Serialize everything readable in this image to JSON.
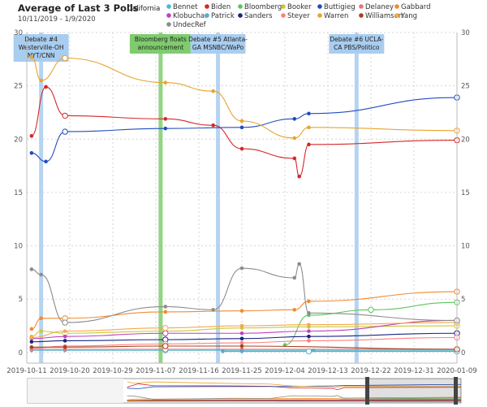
{
  "title": "Average of Last 3 Polls",
  "date_range": "10/11/2019 - 1/9/2020",
  "region": "California",
  "chart_data": {
    "type": "line",
    "x_ticks": [
      "2019-10-11",
      "2019-10-20",
      "2019-10-29",
      "2019-11-07",
      "2019-11-16",
      "2019-11-25",
      "2019-12-04",
      "2019-12-13",
      "2019-12-22",
      "2019-12-31",
      "2020-01-09"
    ],
    "y_ticks": [
      "0",
      "5",
      "10",
      "15",
      "20",
      "25",
      "30"
    ],
    "xlim": [
      "2019-10-11",
      "2020-01-09"
    ],
    "ylim": [
      -1,
      30
    ],
    "grid": true,
    "legend_position": "top",
    "series": [
      {
        "name": "Bennet",
        "color": "#46bcd2",
        "points": [
          [
            "2019-10-12",
            0.2
          ],
          [
            "2019-10-19",
            0.2
          ],
          [
            "2019-11-09",
            0.2
          ],
          [
            "2019-11-25",
            0.2
          ],
          [
            "2019-12-10",
            0.2
          ],
          [
            "2020-01-09",
            0.2
          ]
        ]
      },
      {
        "name": "Biden",
        "color": "#d62728",
        "points": [
          [
            "2019-10-12",
            20.3
          ],
          [
            "2019-10-15",
            24.9
          ],
          [
            "2019-10-19",
            22.2
          ],
          [
            "2019-11-09",
            21.9
          ],
          [
            "2019-11-19",
            21.3
          ],
          [
            "2019-11-25",
            19.1
          ],
          [
            "2019-12-06",
            18.2
          ],
          [
            "2019-12-07",
            16.5
          ],
          [
            "2019-12-09",
            19.5
          ],
          [
            "2020-01-09",
            19.9
          ]
        ]
      },
      {
        "name": "Bloomberg",
        "color": "#5cc45c",
        "points": [
          [
            "2019-12-04",
            0.7
          ],
          [
            "2019-12-09",
            3.5
          ],
          [
            "2019-12-22",
            4.0
          ],
          [
            "2020-01-09",
            4.7
          ]
        ]
      },
      {
        "name": "Booker",
        "color": "#c9c935",
        "points": [
          [
            "2019-10-12",
            1.5
          ],
          [
            "2019-10-14",
            2.0
          ],
          [
            "2019-10-19",
            1.8
          ],
          [
            "2019-11-09",
            2.0
          ],
          [
            "2019-11-25",
            2.3
          ],
          [
            "2019-12-09",
            2.4
          ],
          [
            "2020-01-09",
            2.5
          ]
        ]
      },
      {
        "name": "Buttigieg",
        "color": "#1f4dbf",
        "points": [
          [
            "2019-10-12",
            18.7
          ],
          [
            "2019-10-15",
            17.9
          ],
          [
            "2019-10-19",
            20.7
          ],
          [
            "2019-11-09",
            21.0
          ],
          [
            "2019-11-25",
            21.1
          ],
          [
            "2019-12-06",
            21.9
          ],
          [
            "2019-12-09",
            22.4
          ],
          [
            "2020-01-09",
            23.9
          ]
        ]
      },
      {
        "name": "Delaney",
        "color": "#e8737f",
        "points": [
          [
            "2019-10-12",
            0.3
          ],
          [
            "2019-10-19",
            0.3
          ],
          [
            "2019-11-09",
            0.3
          ],
          [
            "2019-11-25",
            0.3
          ],
          [
            "2020-01-09",
            0.3
          ]
        ]
      },
      {
        "name": "Gabbard",
        "color": "#f28a30",
        "points": [
          [
            "2019-10-12",
            2.2
          ],
          [
            "2019-10-14",
            3.2
          ],
          [
            "2019-10-19",
            3.2
          ],
          [
            "2019-11-09",
            3.8
          ],
          [
            "2019-11-25",
            3.9
          ],
          [
            "2019-12-06",
            4.0
          ],
          [
            "2019-12-09",
            4.8
          ],
          [
            "2020-01-09",
            5.7
          ]
        ]
      },
      {
        "name": "Klobuchar",
        "color": "#c13fc1",
        "points": [
          [
            "2019-10-12",
            1.3
          ],
          [
            "2019-10-19",
            1.5
          ],
          [
            "2019-11-09",
            1.8
          ],
          [
            "2019-11-25",
            1.8
          ],
          [
            "2019-12-09",
            2.0
          ],
          [
            "2020-01-09",
            3.0
          ]
        ]
      },
      {
        "name": "Patrick",
        "color": "#5aa9c9",
        "points": [
          [
            "2019-11-21",
            0.1
          ],
          [
            "2019-11-25",
            0.1
          ],
          [
            "2019-12-09",
            0.1
          ],
          [
            "2020-01-09",
            0.1
          ]
        ]
      },
      {
        "name": "Sanders",
        "color": "#1a237e",
        "points": [
          [
            "2019-10-12",
            1.0
          ],
          [
            "2019-10-19",
            1.1
          ],
          [
            "2019-11-09",
            1.2
          ],
          [
            "2019-11-25",
            1.3
          ],
          [
            "2019-12-09",
            1.5
          ],
          [
            "2020-01-09",
            1.8
          ]
        ]
      },
      {
        "name": "Steyer",
        "color": "#ff7f7f",
        "points": [
          [
            "2019-10-12",
            0.4
          ],
          [
            "2019-10-19",
            0.6
          ],
          [
            "2019-11-09",
            0.8
          ],
          [
            "2019-11-25",
            0.9
          ],
          [
            "2019-12-09",
            1.1
          ],
          [
            "2020-01-09",
            1.4
          ]
        ]
      },
      {
        "name": "Warren",
        "color": "#e8a42c",
        "points": [
          [
            "2019-10-12",
            27.7
          ],
          [
            "2019-10-14",
            25.5
          ],
          [
            "2019-10-19",
            27.6
          ],
          [
            "2019-11-09",
            25.3
          ],
          [
            "2019-11-19",
            24.5
          ],
          [
            "2019-11-25",
            21.7
          ],
          [
            "2019-12-06",
            20.1
          ],
          [
            "2019-12-09",
            21.1
          ],
          [
            "2020-01-09",
            20.8
          ]
        ]
      },
      {
        "name": "Williamson",
        "color": "#a1441e",
        "points": [
          [
            "2019-10-12",
            0.5
          ],
          [
            "2019-10-19",
            0.5
          ],
          [
            "2019-11-09",
            0.6
          ],
          [
            "2019-11-25",
            0.6
          ],
          [
            "2020-01-09",
            0.3
          ]
        ]
      },
      {
        "name": "Yang",
        "color": "#f6a84d",
        "points": [
          [
            "2019-10-12",
            1.4
          ],
          [
            "2019-10-19",
            2.0
          ],
          [
            "2019-11-09",
            2.3
          ],
          [
            "2019-11-25",
            2.5
          ],
          [
            "2019-12-09",
            2.6
          ],
          [
            "2020-01-09",
            2.8
          ]
        ]
      },
      {
        "name": "UndecRef",
        "color": "#8c8c8c",
        "points": [
          [
            "2019-10-12",
            7.8
          ],
          [
            "2019-10-14",
            7.3
          ],
          [
            "2019-10-19",
            2.8
          ],
          [
            "2019-11-09",
            4.3
          ],
          [
            "2019-11-19",
            4.0
          ],
          [
            "2019-11-25",
            7.9
          ],
          [
            "2019-12-06",
            7.0
          ],
          [
            "2019-12-07",
            8.3
          ],
          [
            "2019-12-09",
            3.7
          ],
          [
            "2020-01-09",
            3.0
          ]
        ]
      }
    ],
    "annotations": [
      {
        "date": "2019-10-14",
        "lines": [
          "Debate #4",
          "Westerville-OH",
          "NYT/CNN"
        ],
        "color": "#a9cdef"
      },
      {
        "date": "2019-11-08",
        "lines": [
          "Bloomberg floats",
          "announcement"
        ],
        "color": "#7fcc6e"
      },
      {
        "date": "2019-11-20",
        "lines": [
          "Debate #5 Atlanta-",
          "GA MSNBC/WaPo"
        ],
        "color": "#a9cdef"
      },
      {
        "date": "2019-12-19",
        "lines": [
          "Debate #6 UCLA-",
          "CA PBS/Politico"
        ],
        "color": "#a9cdef"
      }
    ]
  }
}
